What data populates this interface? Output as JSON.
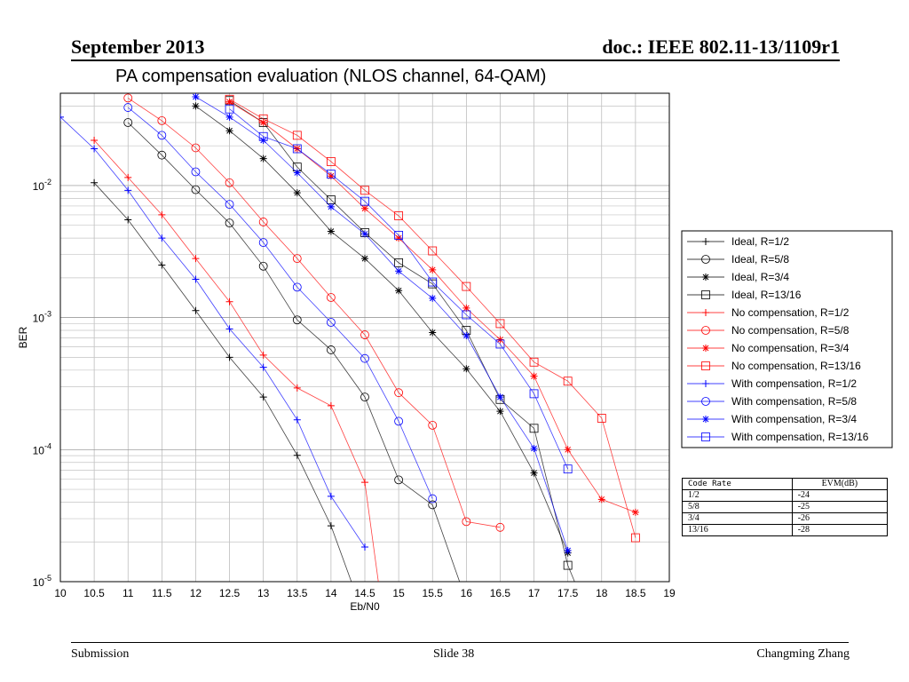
{
  "header": {
    "left": "September 2013",
    "right": "doc.: IEEE 802.11-13/1109r1"
  },
  "footer": {
    "left": "Submission",
    "center": "Slide 38",
    "right": "Changming Zhang"
  },
  "evm_table": {
    "headers": [
      "Code Rate",
      "EVM(dB)"
    ],
    "rows": [
      [
        "1/2",
        "-24"
      ],
      [
        "5/8",
        "-25"
      ],
      [
        "3/4",
        "-26"
      ],
      [
        "13/16",
        "-28"
      ]
    ]
  },
  "colors": {
    "ideal": "#000000",
    "no_comp": "#ff0000",
    "with_comp": "#0000ff"
  },
  "chart_data": {
    "type": "line",
    "title": "PA compensation evaluation (NLOS channel, 64-QAM)",
    "xlabel": "Eb/N0",
    "ylabel": "BER",
    "xlim": [
      10,
      19
    ],
    "ylim": [
      1e-05,
      0.05
    ],
    "yscale": "log",
    "grid": true,
    "legend_position": "right",
    "x_ticks": [
      "10",
      "10.5",
      "11",
      "11.5",
      "12",
      "12.5",
      "13",
      "13.5",
      "14",
      "14.5",
      "15",
      "15.5",
      "16",
      "16.5",
      "17",
      "17.5",
      "18",
      "18.5",
      "19"
    ],
    "y_ticks": [
      {
        "base": "10",
        "exp": "-2",
        "value": 0.01
      },
      {
        "base": "10",
        "exp": "-3",
        "value": 0.001
      },
      {
        "base": "10",
        "exp": "-4",
        "value": 0.0001
      },
      {
        "base": "10",
        "exp": "-5",
        "value": 1e-05
      }
    ],
    "series": [
      {
        "name": "Ideal, R=1/2",
        "color": "#000000",
        "marker": "plus",
        "x": [
          10.5,
          11,
          11.5,
          12,
          12.5,
          13,
          13.5,
          14,
          14.3
        ],
        "y": [
          0.0105,
          0.0055,
          0.0025,
          0.00113,
          0.0005,
          0.00025,
          9.05e-05,
          2.65e-05,
          1e-05
        ]
      },
      {
        "name": "Ideal, R=5/8",
        "color": "#000000",
        "marker": "circle",
        "x": [
          11,
          11.5,
          12,
          12.5,
          13,
          13.5,
          14,
          14.5,
          15,
          15.5,
          15.9
        ],
        "y": [
          0.03,
          0.017,
          0.0093,
          0.0052,
          0.00245,
          0.00096,
          0.00057,
          0.00025,
          5.9e-05,
          3.82e-05,
          1e-05
        ]
      },
      {
        "name": "Ideal, R=3/4",
        "color": "#000000",
        "marker": "star",
        "x": [
          12,
          12.5,
          13,
          13.5,
          14,
          14.5,
          15,
          15.5,
          16,
          16.5,
          17,
          17.5
        ],
        "y": [
          0.04,
          0.026,
          0.016,
          0.0088,
          0.0045,
          0.0028,
          0.0016,
          0.00077,
          0.00041,
          0.000195,
          6.65e-05,
          1.65e-05
        ]
      },
      {
        "name": "Ideal, R=13/16",
        "color": "#000000",
        "marker": "square",
        "x": [
          12.5,
          13,
          13.5,
          14,
          14.5,
          15,
          15.5,
          16,
          16.5,
          17,
          17.5,
          17.6
        ],
        "y": [
          0.044,
          0.03,
          0.0138,
          0.0078,
          0.0044,
          0.0026,
          0.0018,
          0.0008,
          0.00024,
          0.000145,
          1.33e-05,
          1e-05
        ]
      },
      {
        "name": "No compensation, R=1/2",
        "color": "#ff0000",
        "marker": "plus",
        "x": [
          10.5,
          11,
          11.5,
          12,
          12.5,
          13,
          13.5,
          14,
          14.5,
          14.7
        ],
        "y": [
          0.022,
          0.0115,
          0.006,
          0.0028,
          0.00132,
          0.00052,
          0.000293,
          0.000215,
          5.65e-05,
          1e-05
        ]
      },
      {
        "name": "No compensation, R=5/8",
        "color": "#ff0000",
        "marker": "circle",
        "x": [
          11,
          11.5,
          12,
          12.5,
          13,
          13.5,
          14,
          14.5,
          15,
          15.5,
          16,
          16.5
        ],
        "y": [
          0.046,
          0.031,
          0.0193,
          0.0105,
          0.0053,
          0.0028,
          0.00142,
          0.00074,
          0.00027,
          0.000153,
          2.85e-05,
          2.58e-05
        ]
      },
      {
        "name": "No compensation, R=3/4",
        "color": "#ff0000",
        "marker": "star",
        "x": [
          12.5,
          13,
          13.5,
          14,
          14.5,
          15,
          15.5,
          16,
          16.5,
          17,
          17.5,
          18,
          18.5
        ],
        "y": [
          0.043,
          0.03,
          0.019,
          0.0118,
          0.0067,
          0.004,
          0.0023,
          0.00118,
          0.00068,
          0.00036,
          0.0001,
          4.2e-05,
          3.35e-05
        ]
      },
      {
        "name": "No compensation, R=13/16",
        "color": "#ff0000",
        "marker": "square",
        "x": [
          12.5,
          13,
          13.5,
          14,
          14.5,
          15,
          15.5,
          16,
          16.5,
          17,
          17.5,
          18,
          18.5
        ],
        "y": [
          0.045,
          0.032,
          0.024,
          0.0152,
          0.0092,
          0.0059,
          0.0032,
          0.00172,
          0.0009,
          0.00046,
          0.00033,
          0.000173,
          2.15e-05
        ]
      },
      {
        "name": "With compensation, R=1/2",
        "color": "#0000ff",
        "marker": "plus",
        "x": [
          10,
          10.5,
          11,
          11.5,
          12,
          12.5,
          13,
          13.5,
          14,
          14.5
        ],
        "y": [
          0.033,
          0.019,
          0.0092,
          0.004,
          0.00195,
          0.00082,
          0.00042,
          0.000168,
          4.43e-05,
          1.83e-05
        ]
      },
      {
        "name": "With compensation, R=5/8",
        "color": "#0000ff",
        "marker": "circle",
        "x": [
          11,
          11.5,
          12,
          12.5,
          13,
          13.5,
          14,
          14.5,
          15,
          15.5
        ],
        "y": [
          0.039,
          0.024,
          0.0127,
          0.0072,
          0.0037,
          0.0017,
          0.00092,
          0.00049,
          0.000164,
          4.25e-05
        ]
      },
      {
        "name": "With compensation, R=3/4",
        "color": "#0000ff",
        "marker": "star",
        "x": [
          12,
          12.5,
          13,
          13.5,
          14,
          14.5,
          15,
          15.5,
          16,
          16.5,
          17,
          17.5
        ],
        "y": [
          0.047,
          0.033,
          0.022,
          0.0125,
          0.0069,
          0.0043,
          0.00225,
          0.0014,
          0.00073,
          0.00025,
          0.000102,
          1.72e-05
        ]
      },
      {
        "name": "With compensation, R=13/16",
        "color": "#0000ff",
        "marker": "square",
        "x": [
          12.5,
          13,
          13.5,
          14,
          14.5,
          15,
          15.5,
          16,
          16.5,
          17,
          17.5
        ],
        "y": [
          0.038,
          0.0235,
          0.019,
          0.0122,
          0.0076,
          0.0042,
          0.00186,
          0.00105,
          0.00063,
          0.000265,
          7.13e-05
        ]
      }
    ]
  }
}
